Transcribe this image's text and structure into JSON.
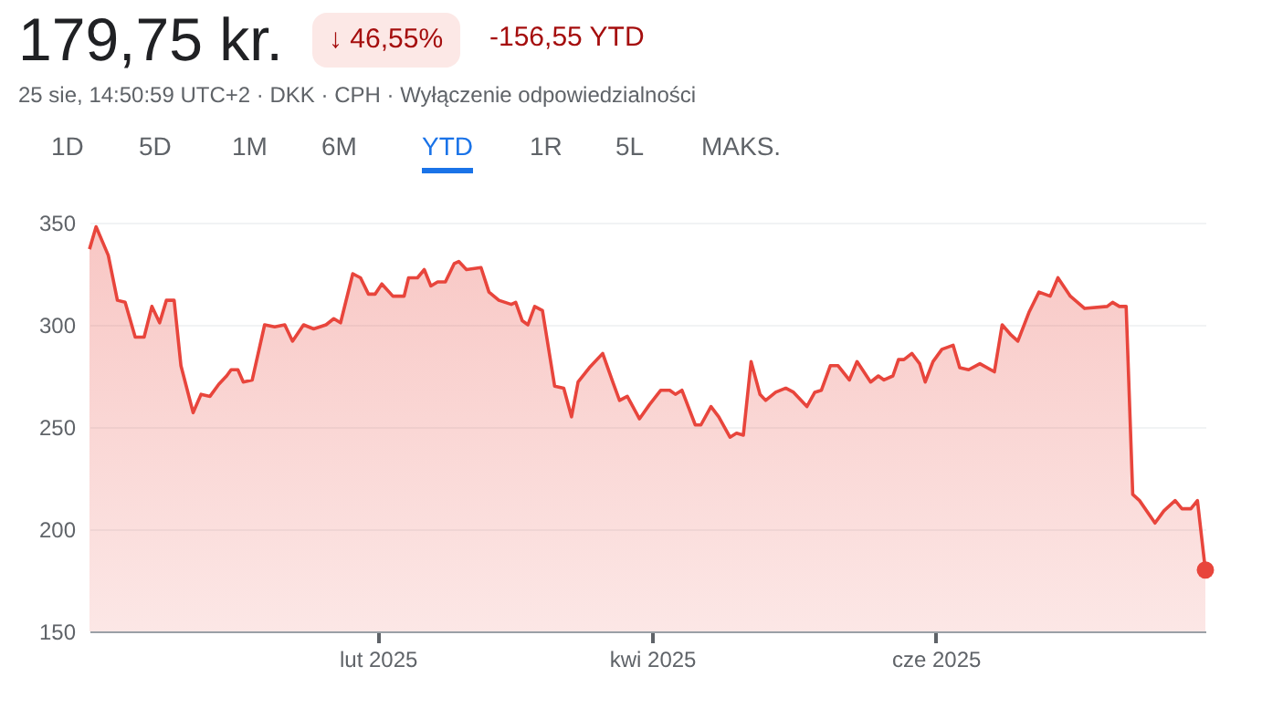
{
  "chart_data": {
    "type": "area",
    "title": "179,75 kr.",
    "subtitle": "25 sie, 14:50:59 UTC+2 · DKK · CPH · Wyłączenie odpowiedzialności",
    "annotations": [
      "↓ 46,55%",
      "-156,55 YTD",
      "1D",
      "5D",
      "1M",
      "6M",
      "YTD",
      "1R",
      "5L",
      "MAKS."
    ],
    "x": [
      "2024-12-01T00:00",
      "2024-12-02T10:00",
      "2024-12-05T01:00",
      "2024-12-07T00:00",
      "2024-12-08T16:00",
      "2024-12-10T20:00",
      "2024-12-12T18:00",
      "2024-12-14T10:00",
      "2024-12-16T02:00",
      "2024-12-17T13:00",
      "2024-12-19T05:00",
      "2024-12-20T16:00",
      "2024-12-23T07:00",
      "2024-12-25T00:00",
      "2024-12-26T22:00",
      "2024-12-28T20:00",
      "2024-12-30T12:00",
      "2024-12-31T11:00",
      "2025-01-01T22:00",
      "2025-01-03T02:00",
      "2025-01-05T00:00",
      "2025-01-07T16:00",
      "2025-01-09T20:00",
      "2025-01-12T00:00",
      "2025-01-13T16:00",
      "2025-01-16T01:00",
      "2025-01-18T05:00",
      "2025-01-20T21:00",
      "2025-01-22T13:00",
      "2025-01-24T00:00",
      "2025-01-26T15:00",
      "2025-01-28T07:00",
      "2025-01-30T00:00",
      "2025-01-31T10:00",
      "2025-02-01T21:00",
      "2025-02-04T06:00",
      "2025-02-06T16:00",
      "2025-02-07T15:00",
      "2025-02-09T13:00",
      "2025-02-11T00:00",
      "2025-02-12T10:00",
      "2025-02-13T21:00",
      "2025-02-15T13:00",
      "2025-02-17T11:00",
      "2025-02-18T10:00",
      "2025-02-20T02:00",
      "2025-02-23T05:00",
      "2025-02-24T22:00",
      "2025-02-27T01:00",
      "2025-03-01T17:00",
      "2025-03-02T16:00",
      "2025-03-04T02:00",
      "2025-03-05T07:00",
      "2025-03-06T18:00",
      "2025-03-08T10:00",
      "2025-03-11T01:00",
      "2025-03-13T00:00",
      "2025-03-14T16:00",
      "2025-03-16T02:00",
      "2025-03-18T12:00",
      "2025-03-21T09:00",
      "2025-03-23T13:00",
      "2025-03-25T00:00",
      "2025-03-26T16:00",
      "2025-03-29T07:00",
      "2025-03-31T11:00",
      "2025-04-02T21:00",
      "2025-04-04T19:00",
      "2025-04-06T00:00",
      "2025-04-07T10:00",
      "2025-04-10T07:00",
      "2025-04-11T12:00",
      "2025-04-13T16:00",
      "2025-04-15T08:00",
      "2025-04-17T18:00",
      "2025-04-19T04:00",
      "2025-04-20T15:00",
      "2025-04-22T07:00",
      "2025-04-24T05:00",
      "2025-04-25T10:00",
      "2025-04-27T14:00",
      "2025-04-29T18:00",
      "2025-05-01T10:00",
      "2025-05-04T07:00",
      "2025-05-06T00:00",
      "2025-05-07T10:00",
      "2025-05-09T08:00",
      "2025-05-11T00:00",
      "2025-05-13T10:00",
      "2025-05-15T02:00",
      "2025-05-18T00:00",
      "2025-05-19T16:00",
      "2025-05-20T21:00",
      "2025-05-22T19:00",
      "2025-05-24T00:00",
      "2025-05-25T04:00",
      "2025-05-26T21:00",
      "2025-05-28T13:00",
      "2025-05-29T18:00",
      "2025-05-31T10:00",
      "2025-06-02T08:00",
      "2025-06-04T18:00",
      "2025-06-06T04:00",
      "2025-06-08T02:00",
      "2025-06-10T12:00",
      "2025-06-13T15:00",
      "2025-06-15T07:00",
      "2025-06-17T05:00",
      "2025-06-18T16:00",
      "2025-06-21T01:00",
      "2025-06-23T05:00",
      "2025-06-25T15:00",
      "2025-06-27T07:00",
      "2025-06-29T23:00",
      "2025-07-03T01:00",
      "2025-07-07T21:00",
      "2025-07-09T01:00",
      "2025-07-10T12:00",
      "2025-07-11T23:00",
      "2025-07-13T09:00",
      "2025-07-14T20:00",
      "2025-07-18T04:00",
      "2025-07-20T02:00",
      "2025-07-22T12:00",
      "2025-07-23T23:00",
      "2025-07-25T21:00",
      "2025-07-27T07:00",
      "2025-07-29T00:00"
    ],
    "series": [
      {
        "color": "#e8453c",
        "values": [
          337,
          348,
          334,
          312,
          311,
          294,
          294,
          309,
          301,
          312,
          312,
          280,
          257,
          266,
          265,
          271,
          275,
          278,
          278,
          272,
          273,
          300,
          299,
          300,
          292,
          300,
          298,
          300,
          303,
          301,
          325,
          323,
          315,
          315,
          320,
          314,
          314,
          323,
          323,
          327,
          319,
          321,
          321,
          330,
          331,
          327,
          328,
          316,
          312,
          310,
          311,
          302,
          300,
          309,
          307,
          270,
          269,
          255,
          272,
          279,
          286,
          272,
          263,
          265,
          254,
          261,
          268,
          268,
          266,
          268,
          251,
          251,
          260,
          255,
          245,
          247,
          246,
          282,
          266,
          263,
          267,
          269,
          267,
          260,
          267,
          268,
          280,
          280,
          273,
          282,
          272,
          275,
          273,
          275,
          283,
          283,
          286,
          281,
          272,
          282,
          288,
          290,
          279,
          278,
          281,
          277,
          300,
          295,
          292,
          306,
          316,
          314,
          323,
          314,
          308,
          309,
          311,
          309,
          309,
          217,
          214,
          203,
          209,
          214,
          210,
          210,
          214,
          180
        ]
      }
    ],
    "xlim": [
      "2024-12-01",
      "2025-07-29"
    ],
    "xticks": [
      {
        "value": "2025-02-01",
        "label": "lut 2025"
      },
      {
        "value": "2025-04-01",
        "label": "kwi 2025"
      },
      {
        "value": "2025-06-01",
        "label": "cze 2025"
      }
    ],
    "ylim": [
      150,
      350
    ],
    "yticks": [
      150,
      200,
      250,
      300,
      350
    ],
    "grid": "y",
    "marker": "none",
    "line_style": "solid"
  }
}
